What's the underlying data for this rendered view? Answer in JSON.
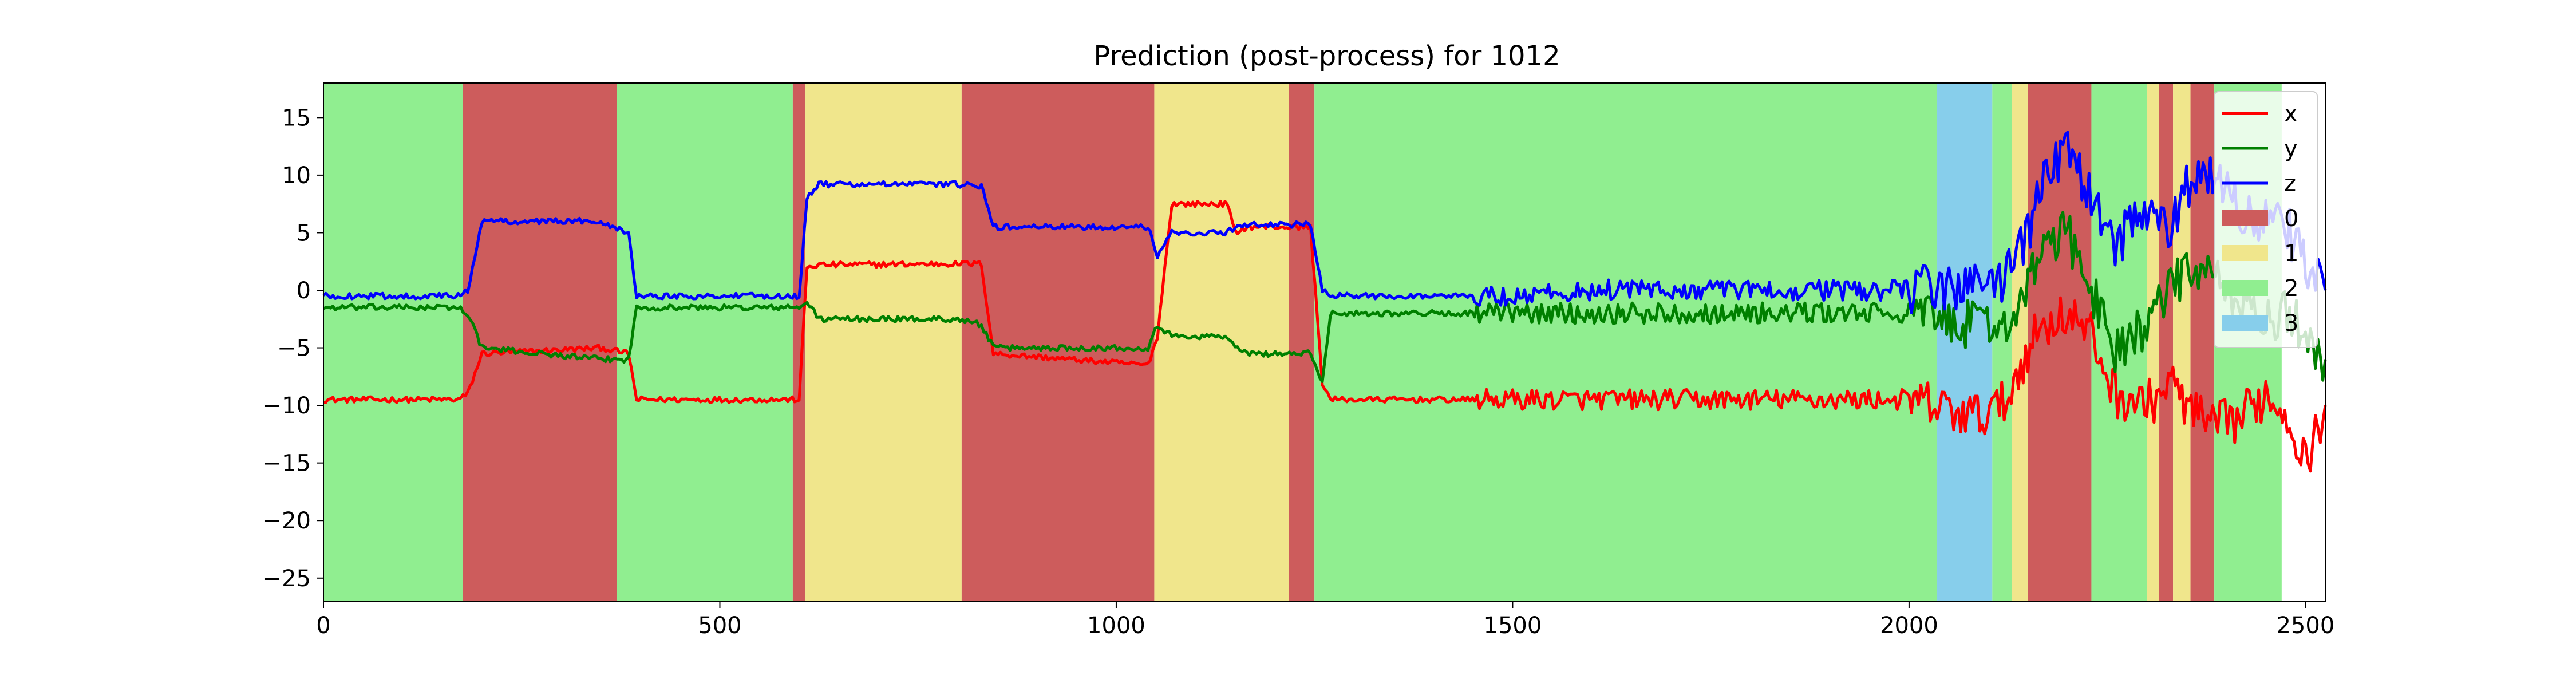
{
  "chart_data": {
    "type": "line",
    "title": "Prediction (post-process) for 1012",
    "xlabel": "",
    "ylabel": "",
    "xlim": [
      0,
      2525
    ],
    "ylim": [
      -27,
      18
    ],
    "xticks": [
      0,
      500,
      1000,
      1500,
      2000,
      2500
    ],
    "yticks": [
      -25,
      -20,
      -15,
      -10,
      -5,
      0,
      5,
      10,
      15
    ],
    "grid": false,
    "legend": {
      "placement": "upper-right"
    },
    "class_colors": {
      "0": "#cd5c5c",
      "1": "#f0e68c",
      "2": "#90ee90",
      "3": "#87ceeb"
    },
    "background_segments": [
      {
        "class": "2",
        "start": 0,
        "end": 176
      },
      {
        "class": "0",
        "start": 176,
        "end": 370
      },
      {
        "class": "2",
        "start": 370,
        "end": 592
      },
      {
        "class": "0",
        "start": 592,
        "end": 608
      },
      {
        "class": "1",
        "start": 608,
        "end": 805
      },
      {
        "class": "0",
        "start": 805,
        "end": 1048
      },
      {
        "class": "1",
        "start": 1048,
        "end": 1218
      },
      {
        "class": "0",
        "start": 1218,
        "end": 1250
      },
      {
        "class": "2",
        "start": 1250,
        "end": 2035
      },
      {
        "class": "3",
        "start": 2035,
        "end": 2105
      },
      {
        "class": "2",
        "start": 2105,
        "end": 2130
      },
      {
        "class": "1",
        "start": 2130,
        "end": 2150
      },
      {
        "class": "0",
        "start": 2150,
        "end": 2230
      },
      {
        "class": "2",
        "start": 2230,
        "end": 2300
      },
      {
        "class": "1",
        "start": 2300,
        "end": 2315
      },
      {
        "class": "0",
        "start": 2315,
        "end": 2333
      },
      {
        "class": "1",
        "start": 2333,
        "end": 2355
      },
      {
        "class": "0",
        "start": 2355,
        "end": 2385
      },
      {
        "class": "2",
        "start": 2385,
        "end": 2470
      }
    ],
    "series": [
      {
        "name": "x",
        "color": "#ff0000",
        "x": [
          0,
          170,
          182,
          200,
          350,
          385,
          395,
          580,
          600,
          610,
          625,
          800,
          830,
          845,
          1040,
          1052,
          1070,
          1120,
          1140,
          1150,
          1165,
          1245,
          1260,
          1270,
          1500,
          1600,
          1800,
          2000,
          2080,
          2120,
          2150,
          2170,
          2200,
          2230,
          2260,
          2300,
          2330,
          2350,
          2380,
          2420,
          2450,
          2480,
          2500,
          2525
        ],
        "y": [
          -9.5,
          -9.5,
          -9,
          -5.5,
          -5,
          -5.5,
          -9.5,
          -9.5,
          -9.5,
          2,
          2.2,
          2.3,
          2.3,
          -5.5,
          -6.5,
          -4,
          7.5,
          7.5,
          7.5,
          5,
          5.5,
          5.5,
          -8,
          -9.5,
          -9.5,
          -9.5,
          -9.5,
          -9.5,
          -11,
          -10,
          -5,
          -3,
          -2,
          -4,
          -9,
          -10,
          -8,
          -10,
          -12,
          -11,
          -9,
          -11,
          -15,
          -10
        ]
      },
      {
        "name": "y",
        "color": "#008000",
        "x": [
          0,
          170,
          182,
          200,
          350,
          385,
          395,
          580,
          600,
          610,
          625,
          800,
          830,
          845,
          1040,
          1052,
          1070,
          1120,
          1140,
          1150,
          1165,
          1245,
          1260,
          1270,
          1500,
          1600,
          1800,
          2000,
          2080,
          2120,
          2150,
          2170,
          2200,
          2230,
          2260,
          2300,
          2330,
          2350,
          2380,
          2420,
          2450,
          2480,
          2500,
          2525
        ],
        "y": [
          -1.5,
          -1.5,
          -2,
          -5,
          -6,
          -6,
          -1.5,
          -1.5,
          -1.5,
          -1,
          -2.5,
          -2.5,
          -3,
          -5,
          -5,
          -3,
          -4,
          -4,
          -4,
          -5,
          -5.5,
          -5.5,
          -8,
          -2,
          -2,
          -2,
          -2,
          -2,
          -3,
          -3,
          0,
          4,
          5,
          0,
          -5,
          -3,
          0,
          2,
          1,
          -1,
          -3,
          -2,
          -4,
          -6
        ]
      },
      {
        "name": "z",
        "color": "#0000ff",
        "x": [
          0,
          170,
          182,
          200,
          350,
          385,
          395,
          580,
          600,
          610,
          625,
          800,
          830,
          845,
          1040,
          1052,
          1070,
          1120,
          1140,
          1150,
          1165,
          1245,
          1260,
          1270,
          1500,
          1600,
          1800,
          2000,
          2080,
          2120,
          2150,
          2170,
          2200,
          2230,
          2260,
          2300,
          2330,
          2350,
          2380,
          2420,
          2450,
          2480,
          2500,
          2525
        ],
        "y": [
          -0.5,
          -0.5,
          0,
          6,
          6,
          5,
          -0.5,
          -0.5,
          -0.5,
          8,
          9.2,
          9.2,
          9,
          5.5,
          5.5,
          3,
          5,
          5,
          5,
          5.5,
          5.7,
          5.7,
          0,
          -0.5,
          -0.5,
          0,
          0,
          0,
          0.5,
          1,
          5,
          10,
          12,
          8,
          4,
          7,
          5,
          9,
          10,
          7,
          6,
          5,
          2,
          0
        ]
      }
    ]
  }
}
